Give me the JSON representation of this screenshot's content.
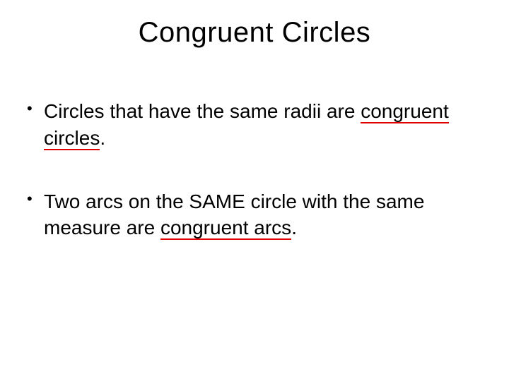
{
  "title": "Congruent Circles",
  "bullets": [
    {
      "prefix": "Circles that have the same radii are ",
      "term": "congruent circles",
      "suffix": "."
    },
    {
      "prefix": "Two arcs on the SAME circle with the same measure are ",
      "term": "congruent arcs",
      "suffix": "."
    }
  ],
  "colors": {
    "background": "#ffffff",
    "text": "#000000",
    "squiggly": "#e00000"
  },
  "fonts": {
    "family": "Arial",
    "title_size": 40,
    "body_size": 28
  }
}
